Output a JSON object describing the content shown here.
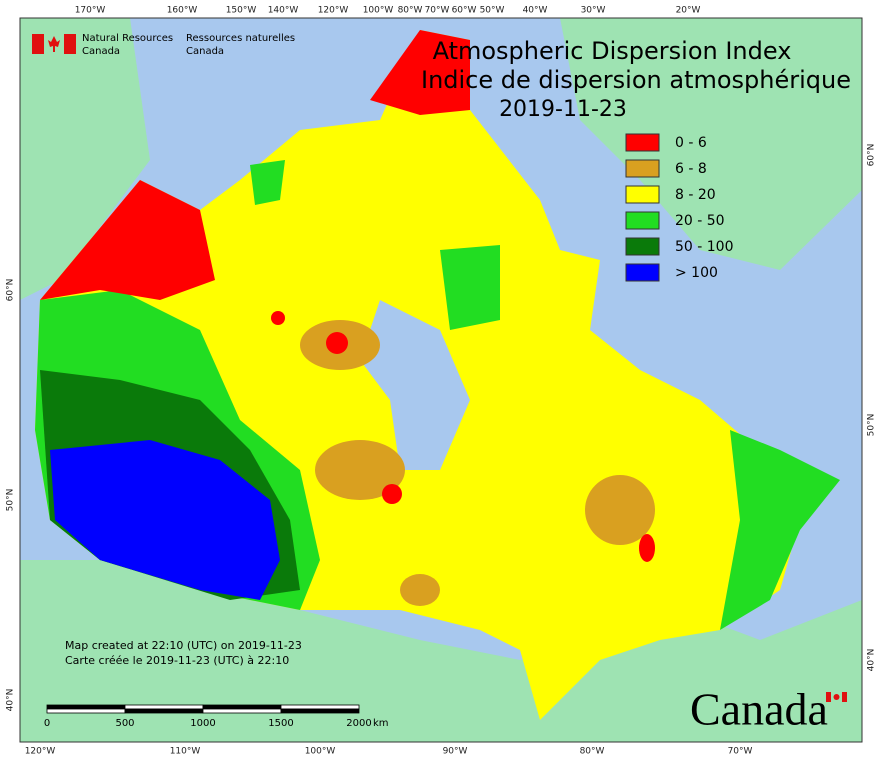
{
  "header": {
    "org_en": "Natural Resources",
    "org_en2": "Canada",
    "org_fr": "Ressources naturelles",
    "org_fr2": "Canada"
  },
  "title": {
    "line1": "Atmospheric Dispersion Index",
    "line2": "Indice de dispersion atmosphérique",
    "date": "2019-11-23"
  },
  "legend": [
    {
      "label": "0 - 6",
      "color": "#ff0000"
    },
    {
      "label": "6 - 8",
      "color": "#d9a020"
    },
    {
      "label": "8 - 20",
      "color": "#ffff00"
    },
    {
      "label": "20 - 50",
      "color": "#22dd22"
    },
    {
      "label": "50 - 100",
      "color": "#0a7a0a"
    },
    {
      "label": "> 100",
      "color": "#0000ff"
    }
  ],
  "graticule": {
    "top": [
      "170°W",
      "160°W",
      "150°W",
      "140°W",
      "120°W",
      "100°W",
      "80°W",
      "70°W",
      "60°W",
      "50°W",
      "40°W",
      "30°W",
      "20°W"
    ],
    "bottom": [
      "120°W",
      "110°W",
      "100°W",
      "90°W",
      "80°W",
      "70°W"
    ],
    "left": [
      "60°N",
      "50°N",
      "40°N"
    ],
    "right": [
      "60°N",
      "50°N",
      "40°N"
    ]
  },
  "notes": [
    "Map created at 22:10 (UTC) on 2019-11-23",
    "Carte créée le 2019-11-23 (UTC) à 22:10"
  ],
  "scale_bar": {
    "labels": [
      "0",
      "500",
      "1000",
      "1500",
      "2000"
    ],
    "unit": "km"
  },
  "wordmark": "Canada"
}
